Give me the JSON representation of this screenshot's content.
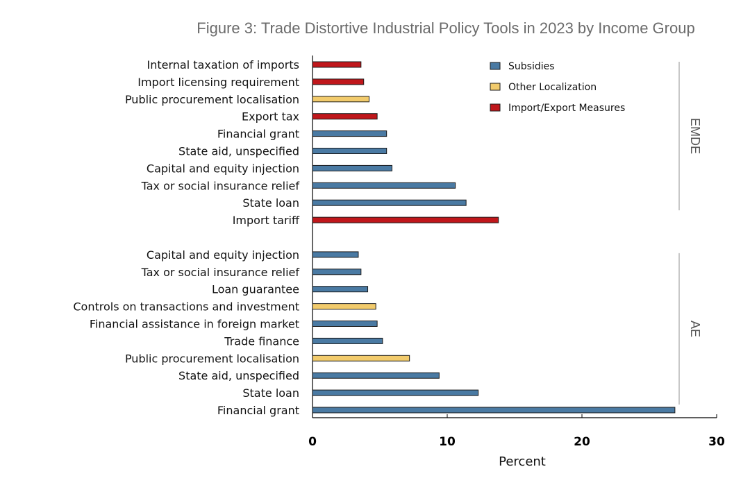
{
  "chart_data": {
    "type": "bar",
    "orientation": "horizontal",
    "title": "Figure 3: Trade Distortive Industrial Policy Tools in 2023 by Income Group",
    "xlabel": "Percent",
    "ylabel": "",
    "xlim": [
      0,
      30
    ],
    "xticks": [
      "0",
      "10",
      "20",
      "30"
    ],
    "legend_position": "top-right",
    "grid": false,
    "series": [
      {
        "name": "Subsidies",
        "color": "#4a7aa3"
      },
      {
        "name": "Other Localization",
        "color": "#f2cb6c"
      },
      {
        "name": "Import/Export Measures",
        "color": "#c0171b"
      }
    ],
    "groups": [
      {
        "name": "EMDE",
        "bars": [
          {
            "category": "Internal taxation of imports",
            "value": 3.6,
            "series": "Import/Export Measures"
          },
          {
            "category": "Import licensing requirement",
            "value": 3.8,
            "series": "Import/Export Measures"
          },
          {
            "category": "Public procurement localisation",
            "value": 4.2,
            "series": "Other Localization"
          },
          {
            "category": "Export tax",
            "value": 4.8,
            "series": "Import/Export Measures"
          },
          {
            "category": "Financial grant",
            "value": 5.5,
            "series": "Subsidies"
          },
          {
            "category": "State aid, unspecified",
            "value": 5.5,
            "series": "Subsidies"
          },
          {
            "category": "Capital and equity injection",
            "value": 5.9,
            "series": "Subsidies"
          },
          {
            "category": "Tax or social insurance relief",
            "value": 10.6,
            "series": "Subsidies"
          },
          {
            "category": "State loan",
            "value": 11.4,
            "series": "Subsidies"
          },
          {
            "category": "Import tariff",
            "value": 13.8,
            "series": "Import/Export Measures"
          }
        ]
      },
      {
        "name": "AE",
        "bars": [
          {
            "category": "Capital and equity injection",
            "value": 3.4,
            "series": "Subsidies"
          },
          {
            "category": "Tax or social insurance relief",
            "value": 3.6,
            "series": "Subsidies"
          },
          {
            "category": "Loan guarantee",
            "value": 4.1,
            "series": "Subsidies"
          },
          {
            "category": "Controls on transactions and investment",
            "value": 4.7,
            "series": "Other Localization"
          },
          {
            "category": "Financial assistance in foreign market",
            "value": 4.8,
            "series": "Subsidies"
          },
          {
            "category": "Trade finance",
            "value": 5.2,
            "series": "Subsidies"
          },
          {
            "category": "Public procurement localisation",
            "value": 7.2,
            "series": "Other Localization"
          },
          {
            "category": "State aid, unspecified",
            "value": 9.4,
            "series": "Subsidies"
          },
          {
            "category": "State loan",
            "value": 12.3,
            "series": "Subsidies"
          },
          {
            "category": "Financial grant",
            "value": 26.9,
            "series": "Subsidies"
          }
        ]
      }
    ]
  }
}
